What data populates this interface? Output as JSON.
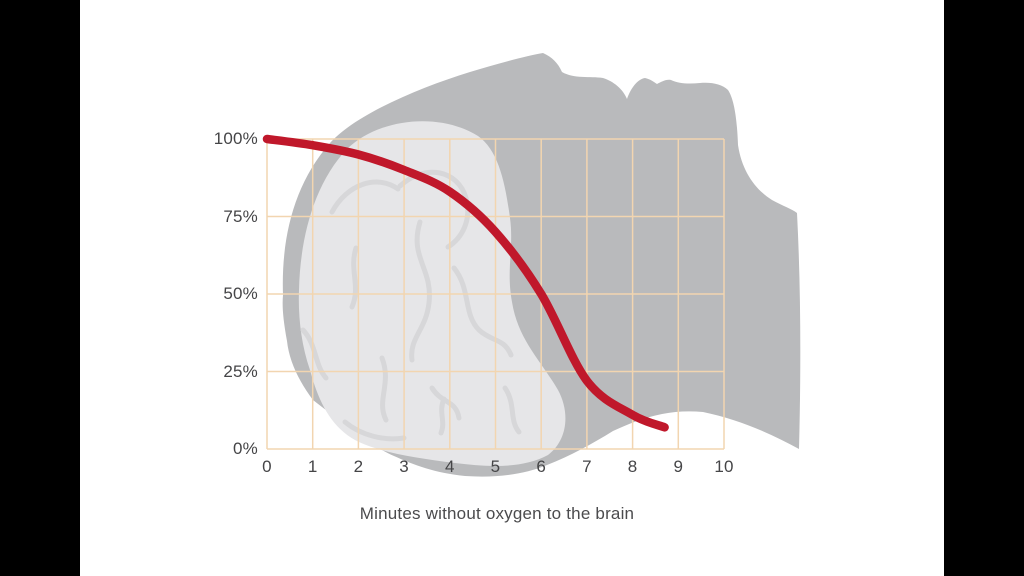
{
  "chart_data": {
    "type": "line",
    "title": "",
    "xlabel": "Minutes without oxygen to the brain",
    "ylabel": "",
    "x_ticks": [
      "0",
      "1",
      "2",
      "3",
      "4",
      "5",
      "6",
      "7",
      "8",
      "9",
      "10"
    ],
    "y_ticks": [
      "100%",
      "75%",
      "50%",
      "25%",
      "0%"
    ],
    "y_tick_values": [
      100,
      75,
      50,
      25,
      0
    ],
    "xlim": [
      0,
      10
    ],
    "ylim": [
      0,
      100
    ],
    "grid": true,
    "legend": false,
    "illustration": "human head in profile tilted back with brain silhouette behind the plot",
    "series": [
      {
        "color": "#c0182b",
        "points": [
          [
            0,
            100
          ],
          [
            1,
            98
          ],
          [
            2,
            95
          ],
          [
            3,
            90
          ],
          [
            4,
            83
          ],
          [
            5,
            70
          ],
          [
            6,
            50
          ],
          [
            7,
            22
          ],
          [
            8,
            11
          ],
          [
            8.7,
            7
          ]
        ]
      }
    ]
  },
  "colors": {
    "background": "#ffffff",
    "letterbox": "#000000",
    "silhouette": "#b9babc",
    "brain": "#e6e6e8",
    "brain_folds": "#d7d7d9",
    "grid": "#f2d5b0",
    "text": "#454547",
    "curve": "#c0182b"
  }
}
